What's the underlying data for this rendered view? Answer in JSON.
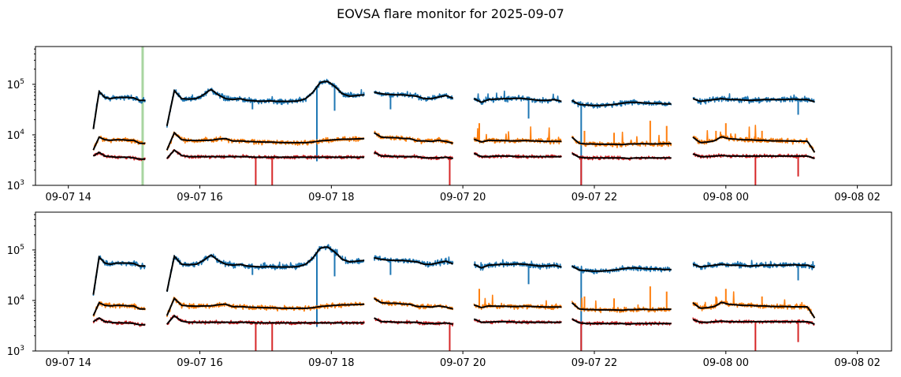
{
  "title": "EOVSA flare monitor for 2025-09-07",
  "chart_data": {
    "type": "line",
    "title": "EOVSA flare monitor for 2025-09-07",
    "x_units": "hours since 2025-09-07 00:00",
    "xlim": [
      13.5,
      26.52
    ],
    "ylim": [
      1000,
      560000
    ],
    "yscale": "log",
    "xticks": [
      {
        "t": 14,
        "label": "09-07 14"
      },
      {
        "t": 16,
        "label": "09-07 16"
      },
      {
        "t": 18,
        "label": "09-07 18"
      },
      {
        "t": 20,
        "label": "09-07 20"
      },
      {
        "t": 22,
        "label": "09-07 22"
      },
      {
        "t": 24,
        "label": "09-08 00"
      },
      {
        "t": 26,
        "label": "09-08 02"
      }
    ],
    "yticks": [
      {
        "value": 1000,
        "base": "10",
        "exp": "3"
      },
      {
        "value": 10000,
        "base": "10",
        "exp": "4"
      },
      {
        "value": 100000,
        "base": "10",
        "exp": "5"
      }
    ],
    "segments": [
      {
        "t0": 14.38,
        "t1": 15.17,
        "blue": [
          13000,
          72000,
          55000,
          52000,
          55000,
          55000,
          55000,
          54000,
          48000,
          48000
        ],
        "orange": [
          5000,
          9000,
          8000,
          7800,
          8000,
          8000,
          7800,
          7800,
          6800,
          6800
        ],
        "red": [
          3800,
          4500,
          3800,
          3700,
          3600,
          3600,
          3600,
          3500,
          3300,
          3300
        ]
      },
      {
        "t0": 15.5,
        "t1": 18.5,
        "blue": [
          15000,
          75000,
          52000,
          51000,
          52000,
          62000,
          80000,
          62000,
          52000,
          50000,
          52000,
          48000,
          47000,
          46000,
          47000,
          46000,
          46000,
          46000,
          47000,
          52000,
          70000,
          110000,
          115000,
          90000,
          65000,
          58000,
          60000,
          62000
        ],
        "orange": [
          5000,
          11000,
          8000,
          7800,
          7700,
          7800,
          7800,
          8200,
          8500,
          7500,
          7600,
          7400,
          7300,
          7200,
          7200,
          7100,
          7000,
          7000,
          7000,
          7000,
          7200,
          7600,
          7800,
          8000,
          8200,
          8200,
          8300,
          8400
        ],
        "red": [
          3400,
          5000,
          3900,
          3700,
          3700,
          3700,
          3700,
          3700,
          3700,
          3700,
          3700,
          3700,
          3600,
          3600,
          3600,
          3600,
          3600,
          3600,
          3600,
          3600,
          3600,
          3600,
          3600,
          3600,
          3600,
          3600,
          3600,
          3600
        ]
      },
      {
        "t0": 18.65,
        "t1": 19.85,
        "blue": [
          70000,
          65000,
          63000,
          62000,
          62000,
          60000,
          58000,
          52000,
          52000,
          56000,
          60000,
          53000
        ],
        "orange": [
          11000,
          9000,
          8800,
          8800,
          8500,
          8400,
          7600,
          7600,
          7400,
          7800,
          7400,
          6800
        ],
        "red": [
          4500,
          3800,
          3800,
          3700,
          3700,
          3700,
          3700,
          3500,
          3500,
          3500,
          3600,
          3400
        ]
      },
      {
        "t0": 20.17,
        "t1": 21.5,
        "blue": [
          52000,
          44000,
          50000,
          51000,
          52000,
          52000,
          53000,
          52000,
          50000,
          48000,
          48000,
          50000,
          46000
        ],
        "orange": [
          8200,
          7200,
          7800,
          7700,
          7700,
          7600,
          7600,
          7700,
          7600,
          7500,
          7400,
          7400,
          7400
        ],
        "red": [
          4300,
          3700,
          3700,
          3800,
          3800,
          3800,
          3700,
          3700,
          3700,
          3700,
          3700,
          3700,
          3700
        ]
      },
      {
        "t0": 21.66,
        "t1": 23.17,
        "blue": [
          48000,
          40000,
          39000,
          38000,
          38000,
          39000,
          40000,
          42000,
          44000,
          44000,
          43000,
          42000,
          42000,
          41000,
          41000
        ],
        "orange": [
          9000,
          6800,
          6600,
          6600,
          6500,
          6500,
          6500,
          6400,
          6600,
          6600,
          6700,
          6600,
          6600,
          6700,
          6700
        ],
        "red": [
          4300,
          3600,
          3500,
          3500,
          3500,
          3500,
          3500,
          3500,
          3400,
          3500,
          3500,
          3500,
          3500,
          3500,
          3500
        ]
      },
      {
        "t0": 23.5,
        "t1": 25.35,
        "blue": [
          52000,
          46000,
          48000,
          50000,
          52000,
          50000,
          50000,
          49000,
          48000,
          49000,
          50000,
          50000,
          50000,
          50000,
          51000,
          50000,
          50000,
          45000
        ],
        "orange": [
          9000,
          7000,
          7200,
          7600,
          9200,
          8400,
          8200,
          8000,
          8000,
          7800,
          7800,
          7600,
          7600,
          7600,
          7500,
          7500,
          7500,
          4500
        ],
        "red": [
          4200,
          3700,
          3700,
          3800,
          3900,
          3800,
          3800,
          3800,
          3800,
          3800,
          3800,
          3800,
          3800,
          3800,
          3800,
          3800,
          3800,
          3400
        ]
      }
    ],
    "series": [
      {
        "key": "blue",
        "color": "#1f77b4"
      },
      {
        "key": "orange",
        "color": "#ff7f0e"
      },
      {
        "key": "red",
        "color": "#d62728"
      },
      {
        "key": "smoothed",
        "color": "#000000"
      }
    ],
    "spikes": [
      {
        "series": "blue",
        "t": 16.8,
        "value": 32000
      },
      {
        "series": "blue",
        "t": 17.78,
        "value": 3000
      },
      {
        "series": "blue",
        "t": 18.05,
        "value": 30000
      },
      {
        "series": "blue",
        "t": 18.9,
        "value": 32000
      },
      {
        "series": "blue",
        "t": 21.0,
        "value": 21000
      },
      {
        "series": "blue",
        "t": 21.8,
        "value": 1000
      },
      {
        "series": "blue",
        "t": 25.1,
        "value": 25000
      },
      {
        "series": "orange",
        "t": 20.25,
        "value": 17000
      },
      {
        "series": "orange",
        "t": 21.85,
        "value": 12000
      },
      {
        "series": "orange",
        "t": 22.3,
        "value": 11000
      },
      {
        "series": "orange",
        "t": 22.85,
        "value": 19000
      },
      {
        "series": "orange",
        "t": 23.1,
        "value": 15000
      },
      {
        "series": "orange",
        "t": 23.85,
        "value": 12000
      },
      {
        "series": "orange",
        "t": 24.0,
        "value": 17000
      },
      {
        "series": "orange",
        "t": 24.55,
        "value": 12000
      },
      {
        "series": "red",
        "t": 16.85,
        "value": 1000
      },
      {
        "series": "red",
        "t": 17.1,
        "value": 1000
      },
      {
        "series": "red",
        "t": 19.8,
        "value": 1000
      },
      {
        "series": "red",
        "t": 21.8,
        "value": 1000
      },
      {
        "series": "red",
        "t": 24.45,
        "value": 1000
      },
      {
        "series": "red",
        "t": 25.1,
        "value": 1500
      }
    ],
    "panels": [
      {
        "name": "top",
        "vlines": [
          {
            "t": 15.13,
            "color": "#a8d5a0"
          }
        ]
      },
      {
        "name": "bottom",
        "vlines": []
      }
    ]
  }
}
